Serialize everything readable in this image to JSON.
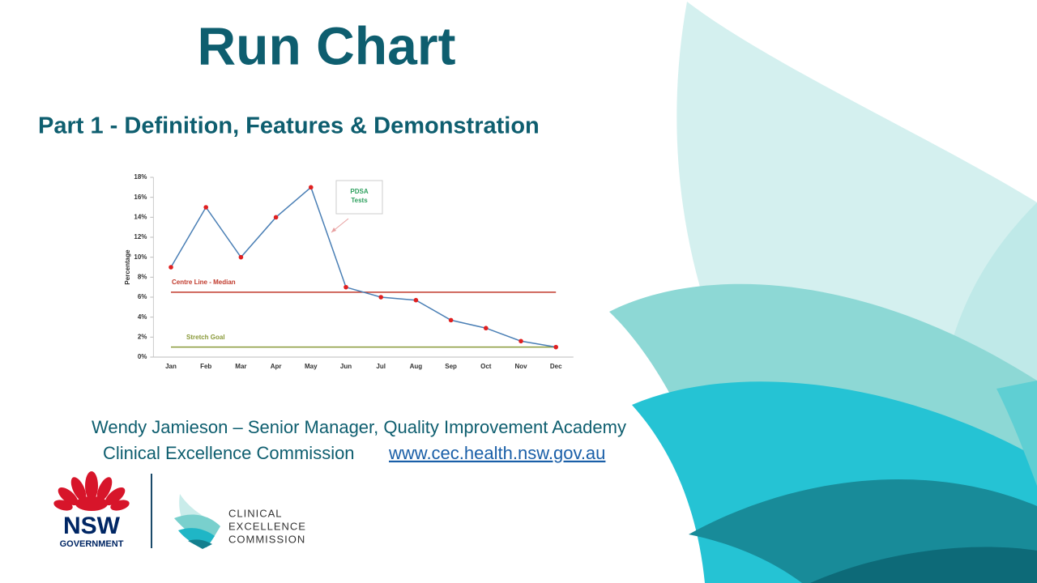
{
  "title": "Run Chart",
  "subtitle": "Part 1 -  Definition, Features & Demonstration",
  "chart_data": {
    "type": "line",
    "y_label": "Percentage",
    "categories": [
      "Jan",
      "Feb",
      "Mar",
      "Apr",
      "May",
      "Jun",
      "Jul",
      "Aug",
      "Sep",
      "Oct",
      "Nov",
      "Dec"
    ],
    "series": [
      {
        "color": "#4a7fb5",
        "marker_color": "#e02020",
        "values": [
          9,
          15,
          10,
          14,
          17,
          7,
          6,
          5.7,
          3.7,
          2.9,
          1.6,
          1
        ]
      }
    ],
    "reference_lines": [
      {
        "name": "Centre Line - Median",
        "value": 6.5,
        "color": "#c0392b"
      },
      {
        "name": "Stretch Goal",
        "value": 1,
        "color": "#8a9a3a"
      }
    ],
    "annotations": [
      "PDSA Tests"
    ],
    "ylim": [
      0,
      18
    ],
    "yticks": [
      {
        "value": 0,
        "label": "0%"
      },
      {
        "value": 2,
        "label": "2%"
      },
      {
        "value": 4,
        "label": "4%"
      },
      {
        "value": 6,
        "label": "6%"
      },
      {
        "value": 8,
        "label": "8%"
      },
      {
        "value": 10,
        "label": "10%"
      },
      {
        "value": 12,
        "label": "12%"
      },
      {
        "value": 14,
        "label": "14%"
      },
      {
        "value": 16,
        "label": "16%"
      },
      {
        "value": 18,
        "label": "18%"
      }
    ],
    "grid": false
  },
  "footer": {
    "presenter": "Wendy Jamieson – Senior Manager, Quality Improvement Academy",
    "organisation": "Clinical Excellence Commission",
    "link": "www.cec.health.nsw.gov.au"
  },
  "logos": {
    "nsw": [
      "NSW",
      "GOVERNMENT"
    ],
    "cec": [
      "CLINICAL",
      "EXCELLENCE",
      "COMMISSION"
    ]
  }
}
